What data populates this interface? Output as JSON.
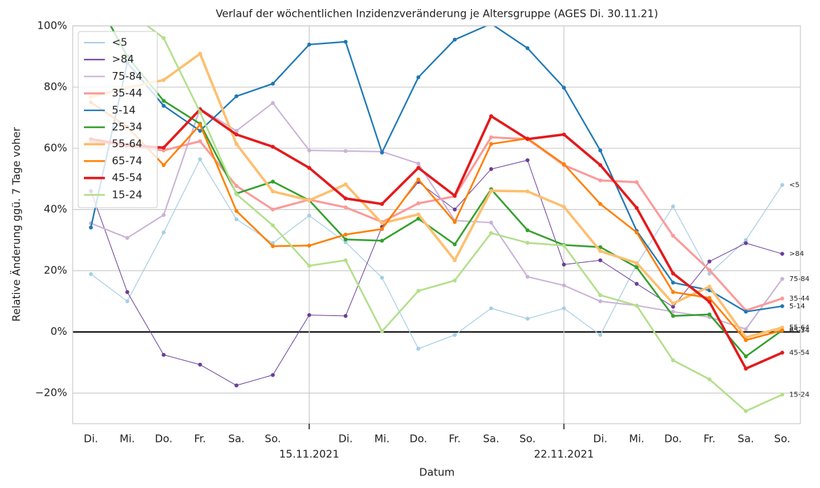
{
  "chart_data": {
    "type": "line",
    "title": "Verlauf der wöchentlichen Inzidenzveränderung je Altersgruppe (AGES Di. 30.11.21)",
    "xlabel": "Datum",
    "ylabel": "Relative Änderung ggü. 7 Tage voher",
    "categories": [
      "Di.",
      "Mi.",
      "Do.",
      "Fr.",
      "Sa.",
      "So.",
      "15.11.2021",
      "Di.",
      "Mi.",
      "Do.",
      "Fr.",
      "Sa.",
      "So.",
      "22.11.2021",
      "Di.",
      "Mi.",
      "Do.",
      "Fr.",
      "Sa.",
      "So."
    ],
    "ylim": [
      -30,
      100
    ],
    "yticks": [
      {
        "value": -20,
        "label": "−20%"
      },
      {
        "value": 0,
        "label": "0%"
      },
      {
        "value": 20,
        "label": "20%"
      },
      {
        "value": 40,
        "label": "40%"
      },
      {
        "value": 60,
        "label": "60%"
      },
      {
        "value": 80,
        "label": "80%"
      },
      {
        "value": 100,
        "label": "100%"
      }
    ],
    "grid": true,
    "legend": "upper left",
    "series": [
      {
        "name": "<5",
        "color": "#a6cee3",
        "width": 1.2,
        "values": [
          18.9,
          10,
          32.5,
          56.4,
          36.8,
          29,
          38,
          29.3,
          17.7,
          -5.5,
          -1,
          7.7,
          4.3,
          7.7,
          -1,
          22,
          41,
          19,
          30,
          48
        ]
      },
      {
        "name": ">84",
        "color": "#6a3d9a",
        "width": 1,
        "values": [
          46,
          13,
          -7.5,
          -10.7,
          -17.5,
          -14.1,
          5.5,
          5.2,
          34.3,
          49,
          40,
          53.2,
          56.1,
          22,
          23.4,
          15.7,
          8.2,
          23,
          29,
          25.5
        ]
      },
      {
        "name": "75-84",
        "color": "#cab2d6",
        "width": 2,
        "values": [
          35.5,
          30.7,
          38.2,
          73,
          65.7,
          74.8,
          59.3,
          59.1,
          58.9,
          55,
          36.4,
          35.7,
          18,
          15.2,
          10,
          8.6,
          6.6,
          4.8,
          0.9,
          17.3
        ]
      },
      {
        "name": "35-44",
        "color": "#fb9a99",
        "width": 3,
        "values": [
          62.3,
          60.7,
          59.3,
          62.3,
          47.7,
          40,
          43.2,
          40.7,
          35.9,
          42,
          44.3,
          63.6,
          63,
          54.5,
          49.5,
          48.9,
          31.4,
          20.2,
          7,
          10.9
        ]
      },
      {
        "name": "5-14",
        "color": "#1f78b4",
        "width": 2.2,
        "values": [
          34.1,
          88,
          73.9,
          65.7,
          77,
          81.1,
          93.9,
          94.8,
          58.6,
          83.2,
          95.5,
          100.7,
          92.7,
          79.8,
          59.3,
          33,
          16.1,
          13.6,
          6.6,
          8.4
        ]
      },
      {
        "name": "25-34",
        "color": "#33a02c",
        "width": 2.5,
        "values": [
          112,
          90,
          75.5,
          68,
          45.2,
          49.1,
          43,
          30.2,
          29.8,
          37,
          28.6,
          46.6,
          33.2,
          28.4,
          27.7,
          21.1,
          5.2,
          5.7,
          -8,
          0.5
        ]
      },
      {
        "name": "55-64",
        "color": "#fdbf6f",
        "width": 3.5,
        "values": [
          76.8,
          79.8,
          82.3,
          90.9,
          61.4,
          45.9,
          43,
          48.2,
          35.5,
          38.4,
          23.4,
          46.1,
          45.9,
          40.9,
          26.4,
          22.5,
          9.3,
          14.8,
          -1.8,
          1.4
        ]
      },
      {
        "name": "65-74",
        "color": "#ff7f00",
        "width": 2.5,
        "values": [
          75,
          67,
          54.5,
          67.7,
          39.5,
          28,
          28.2,
          31.8,
          33.6,
          49.8,
          35.9,
          61.4,
          63.2,
          54.8,
          41.8,
          32.5,
          13,
          11.1,
          -2.7,
          0.5
        ]
      },
      {
        "name": "45-54",
        "color": "#e31a1c",
        "width": 3.5,
        "values": [
          63,
          61,
          60.2,
          72.7,
          64.5,
          60.5,
          53.6,
          43.6,
          41.8,
          53.6,
          44.5,
          70.5,
          63,
          64.5,
          54.5,
          40.5,
          19.1,
          9.8,
          -12,
          -6.8
        ]
      },
      {
        "name": "15-24",
        "color": "#b2df8a",
        "width": 2.5,
        "values": [
          115,
          105,
          96,
          71.8,
          45,
          34.8,
          21.6,
          23.4,
          0.2,
          13.4,
          16.8,
          32.3,
          29.1,
          28.2,
          12,
          8.6,
          -9.3,
          -15.5,
          -25.9,
          -20.5
        ]
      }
    ]
  }
}
